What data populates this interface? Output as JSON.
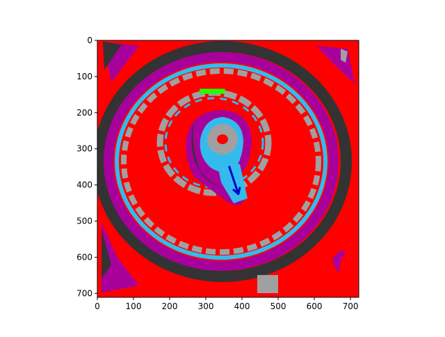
{
  "axes": {
    "x_ticks": [
      "0",
      "100",
      "200",
      "300",
      "400",
      "500",
      "600",
      "700"
    ],
    "y_ticks": [
      "0",
      "100",
      "200",
      "300",
      "400",
      "500",
      "600",
      "700"
    ],
    "x_range": [
      0,
      723
    ],
    "y_range": [
      0,
      711
    ],
    "y_inverted": true
  },
  "image": {
    "description_colors": {
      "background": "#ff0000",
      "band_magenta": "#a8009a",
      "band_cyan": "#33bbee",
      "band_gray": "#a0a0a0",
      "band_dark": "#333333"
    }
  },
  "annotations": {
    "green_bar": {
      "color": "#22ff00",
      "x": [
        283,
        353
      ],
      "y": [
        134,
        148
      ]
    },
    "blue_arrow": {
      "color": "#0000cc",
      "from": [
        365,
        350
      ],
      "to": [
        390,
        425
      ]
    }
  }
}
